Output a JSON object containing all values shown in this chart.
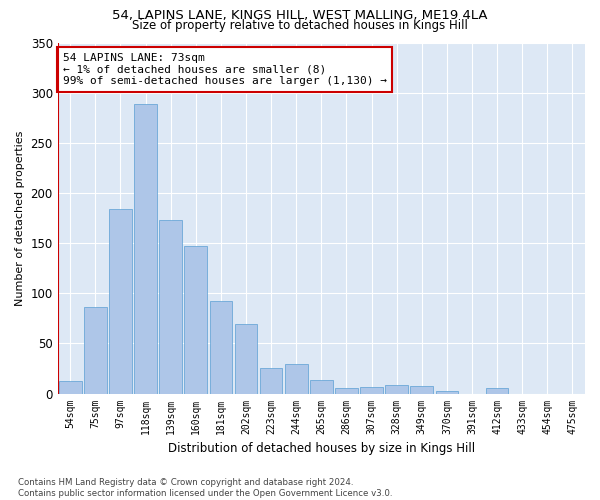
{
  "title": "54, LAPINS LANE, KINGS HILL, WEST MALLING, ME19 4LA",
  "subtitle": "Size of property relative to detached houses in Kings Hill",
  "xlabel": "Distribution of detached houses by size in Kings Hill",
  "ylabel": "Number of detached properties",
  "bar_color": "#aec6e8",
  "bar_edge_color": "#5a9fd4",
  "highlight_color": "#cc0000",
  "background_color": "#dde8f5",
  "categories": [
    "54sqm",
    "75sqm",
    "97sqm",
    "118sqm",
    "139sqm",
    "160sqm",
    "181sqm",
    "202sqm",
    "223sqm",
    "244sqm",
    "265sqm",
    "286sqm",
    "307sqm",
    "328sqm",
    "349sqm",
    "370sqm",
    "391sqm",
    "412sqm",
    "433sqm",
    "454sqm",
    "475sqm"
  ],
  "values": [
    13,
    86,
    184,
    289,
    173,
    147,
    92,
    69,
    25,
    29,
    14,
    6,
    7,
    9,
    8,
    3,
    0,
    6,
    0,
    0,
    0
  ],
  "highlight_index": 0,
  "annotation_text": "54 LAPINS LANE: 73sqm\n← 1% of detached houses are smaller (8)\n99% of semi-detached houses are larger (1,130) →",
  "ylim": [
    0,
    350
  ],
  "yticks": [
    0,
    50,
    100,
    150,
    200,
    250,
    300,
    350
  ],
  "footer_line1": "Contains HM Land Registry data © Crown copyright and database right 2024.",
  "footer_line2": "Contains public sector information licensed under the Open Government Licence v3.0."
}
